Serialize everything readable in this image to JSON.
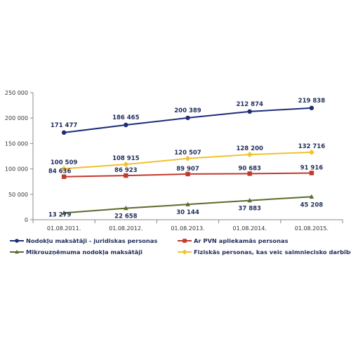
{
  "chart_data": {
    "type": "line",
    "categories": [
      "01.08.2011.",
      "01.08.2012.",
      "01.08.2013.",
      "01.08.2014.",
      "01.08.2015."
    ],
    "ylim": [
      0,
      250000
    ],
    "yticks": [
      "0",
      "50 000",
      "100 000",
      "150 000",
      "200 000",
      "250 000"
    ],
    "grid": false,
    "legend_position": "bottom",
    "series": [
      {
        "name": "Nodokļu maksātāji - juridiskas personas",
        "values": [
          171477,
          186465,
          200389,
          212874,
          219838
        ],
        "labels": [
          "171 477",
          "186 465",
          "200 389",
          "212 874",
          "219 838"
        ],
        "color": "#1f2d78",
        "marker": "circle"
      },
      {
        "name": "Ar PVN apliekamās personas",
        "values": [
          84636,
          86923,
          89907,
          90683,
          91916
        ],
        "labels": [
          "84 636",
          "86 923",
          "89 907",
          "90 683",
          "91 916"
        ],
        "color": "#c0392b",
        "marker": "square"
      },
      {
        "name": "Mikrouzņēmuma nodokļa maksātāji",
        "values": [
          13279,
          22658,
          30144,
          37883,
          45208
        ],
        "labels": [
          "13 279",
          "22 658",
          "30 144",
          "37 883",
          "45 208"
        ],
        "color": "#5a6b2a",
        "marker": "triangle"
      },
      {
        "name": "Fiziskās personas, kas veic saimniecisko darbību",
        "values": [
          100509,
          108915,
          120507,
          128200,
          132716
        ],
        "labels": [
          "100 509",
          "108 915",
          "120 507",
          "128 200",
          "132 716"
        ],
        "color": "#f2c12e",
        "marker": "diamond"
      }
    ]
  }
}
